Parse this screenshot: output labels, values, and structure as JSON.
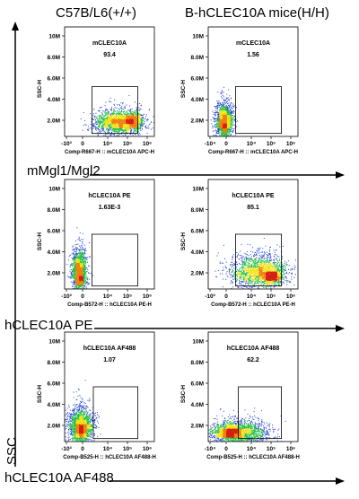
{
  "column_titles": [
    "C57B/L6(+/+)",
    "B-hCLEC10A mice(H/H)"
  ],
  "row_labels": [
    "mMgl1/Mgl2",
    "hCLEC10A PE",
    "hCLEC10A AF488"
  ],
  "ssc_label": "SSC",
  "colors": {
    "dense": "#d62010",
    "mid": "#f0e010",
    "low": "#20c040",
    "sparse": "#2040d0",
    "axis": "#000000"
  },
  "chart_data": [
    {
      "type": "scatter",
      "row": 0,
      "col": 0,
      "gate_name": "mCLEC10A",
      "gate_value": "93.4",
      "xlabel": "Comp-R667-H :: mCLEC10A APC-H",
      "ylabel": "SSC-H",
      "x_ticks": [
        "-10³",
        "0",
        "10⁴",
        "10⁵",
        "10⁶"
      ],
      "y_ticks": [
        "10M",
        "8.0M",
        "6.0M",
        "4.0M",
        "2.0M"
      ],
      "x_range": [
        -0.2,
        1.05
      ],
      "y_range": [
        0,
        11
      ],
      "gate": {
        "x": [
          0.18,
          0.82
        ],
        "y": [
          0.3,
          5.0
        ]
      },
      "clusters": [
        {
          "x": 0.55,
          "y": 1.5,
          "sx": 0.17,
          "sy": 0.55,
          "n": 1800
        },
        {
          "x": 0.75,
          "y": 1.6,
          "sx": 0.06,
          "sy": 0.4,
          "n": 500
        }
      ]
    },
    {
      "type": "scatter",
      "row": 0,
      "col": 1,
      "gate_name": "mCLEC10A",
      "gate_value": "1.56",
      "xlabel": "Comp-R667-H :: mCLEC10A APC-H",
      "ylabel": "SSC-H",
      "x_ticks": [
        "-10⁴",
        "0",
        "10⁴",
        "10⁵",
        "10⁶"
      ],
      "y_ticks": [
        "10M",
        "8.0M",
        "6.0M",
        "4.0M",
        "2.0M"
      ],
      "x_range": [
        -0.2,
        1.05
      ],
      "y_range": [
        0,
        11
      ],
      "gate": {
        "x": [
          0.18,
          0.82
        ],
        "y": [
          0.3,
          5.0
        ]
      },
      "clusters": [
        {
          "x": 0.02,
          "y": 1.6,
          "sx": 0.06,
          "sy": 0.9,
          "n": 1400
        },
        {
          "x": 0.02,
          "y": 1.1,
          "sx": 0.035,
          "sy": 0.35,
          "n": 400
        }
      ]
    },
    {
      "type": "scatter",
      "row": 1,
      "col": 0,
      "gate_name": "hCLEC10A PE",
      "gate_value": "1.63E-3",
      "xlabel": "Comp-B572-H :: hCLEC10A PE-H",
      "ylabel": "SSC-H",
      "x_ticks": [
        "-10³",
        "0",
        "10⁴",
        "10⁵",
        "10⁶"
      ],
      "y_ticks": [
        "10M",
        "8.0M",
        "6.0M",
        "4.0M",
        "2.0M"
      ],
      "x_range": [
        -0.2,
        1.05
      ],
      "y_range": [
        0,
        11
      ],
      "gate": {
        "x": [
          0.18,
          0.82
        ],
        "y": [
          0.3,
          5.5
        ]
      },
      "clusters": [
        {
          "x": 0.0,
          "y": 1.8,
          "sx": 0.05,
          "sy": 1.0,
          "n": 1500
        },
        {
          "x": 0.01,
          "y": 1.1,
          "sx": 0.025,
          "sy": 0.35,
          "n": 400
        }
      ]
    },
    {
      "type": "scatter",
      "row": 1,
      "col": 1,
      "gate_name": "hCLEC10A PE",
      "gate_value": "85.1",
      "xlabel": "Comp-B572-H :: hCLEC10A PE-H",
      "ylabel": "SSC-H",
      "x_ticks": [
        "-10³",
        "0",
        "10⁴",
        "10⁵",
        "10⁶"
      ],
      "y_ticks": [
        "10M",
        "8.0M",
        "6.0M",
        "4.0M",
        "2.0M"
      ],
      "x_range": [
        -0.2,
        1.05
      ],
      "y_range": [
        0,
        11
      ],
      "gate": {
        "x": [
          0.18,
          0.82
        ],
        "y": [
          0.3,
          5.5
        ]
      },
      "clusters": [
        {
          "x": 0.5,
          "y": 1.8,
          "sx": 0.2,
          "sy": 0.8,
          "n": 1700
        },
        {
          "x": 0.68,
          "y": 1.3,
          "sx": 0.07,
          "sy": 0.3,
          "n": 600
        }
      ]
    },
    {
      "type": "scatter",
      "row": 2,
      "col": 0,
      "gate_name": "hCLEC10A AF488",
      "gate_value": "1.07",
      "xlabel": "Comp-B525-H :: hCLEC10A AF488-H",
      "ylabel": "SSC-H",
      "x_ticks": [
        "-10³",
        "0",
        "10⁴",
        "10⁵",
        "10⁶"
      ],
      "y_ticks": [
        "10M",
        "8.0M",
        "6.0M",
        "4.0M",
        "2.0M"
      ],
      "x_range": [
        -0.2,
        1.05
      ],
      "y_range": [
        0,
        11
      ],
      "gate": {
        "x": [
          0.2,
          0.82
        ],
        "y": [
          0.3,
          5.5
        ]
      },
      "clusters": [
        {
          "x": 0.02,
          "y": 1.6,
          "sx": 0.09,
          "sy": 0.9,
          "n": 1600
        },
        {
          "x": 0.02,
          "y": 1.1,
          "sx": 0.04,
          "sy": 0.35,
          "n": 500
        }
      ]
    },
    {
      "type": "scatter",
      "row": 2,
      "col": 1,
      "gate_name": "hCLEC10A AF488",
      "gate_value": "62.2",
      "xlabel": "Comp-B525-H :: hCLEC10A AF488-H",
      "ylabel": "SSC-H",
      "x_ticks": [
        "-10⁴",
        "0",
        "10⁴",
        "10⁵",
        "10⁶"
      ],
      "y_ticks": [
        "10M",
        "8.0M",
        "6.0M",
        "4.0M",
        "2.0M"
      ],
      "x_range": [
        -0.2,
        1.05
      ],
      "y_range": [
        0,
        11
      ],
      "gate": {
        "x": [
          0.22,
          0.82
        ],
        "y": [
          0.3,
          5.5
        ]
      },
      "clusters": [
        {
          "x": 0.2,
          "y": 1.0,
          "sx": 0.22,
          "sy": 0.55,
          "n": 1800
        },
        {
          "x": 0.1,
          "y": 0.9,
          "sx": 0.08,
          "sy": 0.25,
          "n": 600
        }
      ]
    }
  ]
}
